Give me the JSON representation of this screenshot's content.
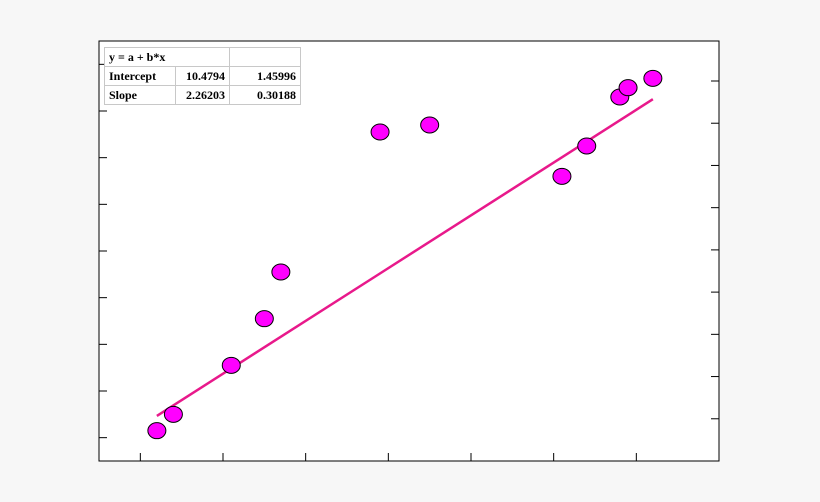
{
  "colors": {
    "background": "#f7f7f7",
    "plot_area": "#ffffff",
    "axis": "#000000",
    "marker_fill": "#ff00ff",
    "marker_stroke": "#000000",
    "fit_line": "#e8198b"
  },
  "fit_table": {
    "equation": "y = a + b*x",
    "rows": [
      {
        "label": "Intercept",
        "value": "10.4794",
        "error": "1.45996"
      },
      {
        "label": "Slope",
        "value": "2.26203",
        "error": "0.30188"
      }
    ]
  },
  "chart_data": {
    "type": "scatter",
    "title": "",
    "xlabel": "",
    "ylabel": "",
    "xlim": [
      -0.5,
      7.0
    ],
    "ylim": [
      9.0,
      27.0
    ],
    "grid": false,
    "x_ticks": [
      0,
      1,
      2,
      3,
      4,
      5,
      6,
      7
    ],
    "y_ticks": [
      10,
      12,
      14,
      16,
      18,
      20,
      22,
      24,
      26
    ],
    "x_tick_labels_shown": false,
    "y_tick_labels_shown": false,
    "series": [
      {
        "x": [
          0.2,
          0.4,
          1.1,
          1.5,
          1.7,
          2.9,
          3.5,
          5.1,
          5.4,
          5.8,
          5.9,
          6.2
        ],
        "y": [
          10.3,
          11.0,
          13.1,
          15.1,
          17.1,
          23.1,
          23.4,
          21.2,
          22.5,
          24.6,
          25.0,
          25.4
        ]
      }
    ],
    "fit_line": {
      "intercept": 10.4794,
      "slope": 2.26203,
      "x_range": [
        0.2,
        6.2
      ]
    }
  }
}
